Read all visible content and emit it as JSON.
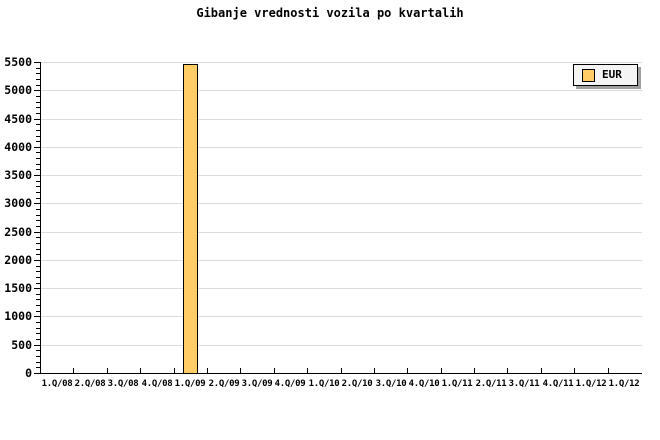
{
  "title": "Gibanje vrednosti vozila po kvartalih",
  "legend": {
    "label": "EUR"
  },
  "colors": {
    "background": "#FFFFFF",
    "bar_fill": "#FFCC66",
    "bar_border": "#000000",
    "gridline": "#DCDCDC",
    "axis": "#000000",
    "text": "#000000",
    "legend_fill": "#F4F4F4",
    "legend_border": "#000000",
    "legend_shadow": "#A0A0A0"
  },
  "chart_data": {
    "type": "bar",
    "title": "Gibanje vrednosti vozila po kvartalih",
    "categories": [
      "1.Q/08",
      "2.Q/08",
      "3.Q/08",
      "4.Q/08",
      "1.Q/09",
      "2.Q/09",
      "3.Q/09",
      "4.Q/09",
      "1.Q/10",
      "2.Q/10",
      "3.Q/10",
      "4.Q/10",
      "1.Q/11",
      "2.Q/11",
      "3.Q/11",
      "4.Q/11",
      "1.Q/12",
      "1.Q/12"
    ],
    "series": [
      {
        "name": "EUR",
        "values": [
          0,
          0,
          0,
          0,
          5460,
          0,
          0,
          0,
          0,
          0,
          0,
          0,
          0,
          0,
          0,
          0,
          0,
          0
        ]
      }
    ],
    "xlabel": "",
    "ylabel": "",
    "ylim": [
      0,
      5500
    ],
    "yticks": [
      0,
      500,
      1000,
      1500,
      2000,
      2500,
      3000,
      3500,
      4000,
      4500,
      5000,
      5500
    ],
    "ytick_interval": 500,
    "y_minor_tick_interval": 100,
    "grid": true,
    "legend_position": "top-right"
  }
}
